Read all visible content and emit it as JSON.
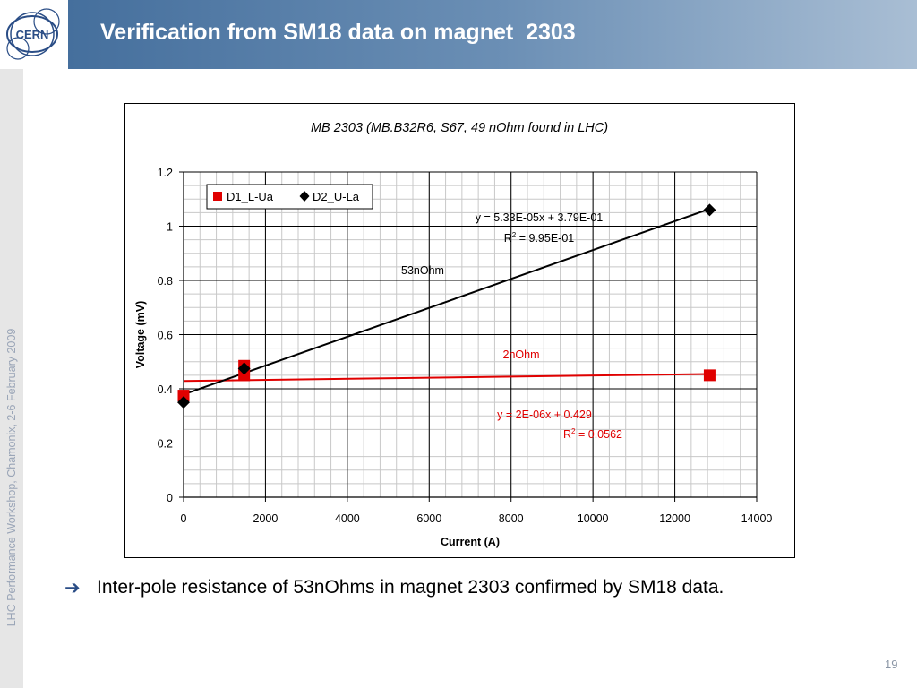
{
  "header": {
    "title": "Verification from SM18 data on magnet  2303",
    "logo_text": "CERN"
  },
  "sidebar": {
    "text": "LHC Performance Workshop, Chamonix, 2-6 February 2009"
  },
  "bullet": {
    "text": "Inter-pole resistance of 53nOhms in magnet 2303 confirmed by SM18 data."
  },
  "page_number": "19",
  "chart_data": {
    "type": "scatter",
    "title": "MB 2303 (MB.B32R6, S67, 49 nOhm found in LHC)",
    "xlabel": "Current (A)",
    "ylabel": "Voltage (mV)",
    "xlim": [
      0,
      14000
    ],
    "ylim": [
      0,
      1.2
    ],
    "xticks": [
      0,
      2000,
      4000,
      6000,
      8000,
      10000,
      12000,
      14000
    ],
    "yticks": [
      0,
      0.2,
      0.4,
      0.6,
      0.8,
      1,
      1.2
    ],
    "xtick_labels": [
      "0",
      "2000",
      "4000",
      "6000",
      "8000",
      "10000",
      "12000",
      "14000"
    ],
    "ytick_labels": [
      "0",
      "0.2",
      "0.4",
      "0.6",
      "0.8",
      "1",
      "1.2"
    ],
    "grid": true,
    "legend_position": "top-left",
    "series": [
      {
        "name": "D1_L-Ua",
        "marker": "square",
        "color": "#e00000",
        "points": [
          [
            0,
            0.375
          ],
          [
            1480,
            0.485
          ],
          [
            1480,
            0.45
          ],
          [
            12850,
            0.45
          ]
        ],
        "trendline": {
          "slope": 2e-06,
          "intercept": 0.429,
          "equation": "y = 2E-06x + 0.429",
          "r2_prefix": "R",
          "r2_sup": "2",
          "r2_value": " = 0.0562"
        }
      },
      {
        "name": "D2_U-La",
        "marker": "diamond",
        "color": "#000000",
        "points": [
          [
            0,
            0.35
          ],
          [
            1480,
            0.475
          ],
          [
            12850,
            1.06
          ]
        ],
        "trendline": {
          "slope": 5.33e-05,
          "intercept": 0.379,
          "equation": "y = 5.33E-05x + 3.79E-01",
          "r2_prefix": "R",
          "r2_sup": "2",
          "r2_value": " = 9.95E-01"
        }
      }
    ],
    "annotations": [
      {
        "text": "53nOhm",
        "color": "#000000"
      },
      {
        "text": "2nOhm",
        "color": "#e00000"
      }
    ]
  }
}
